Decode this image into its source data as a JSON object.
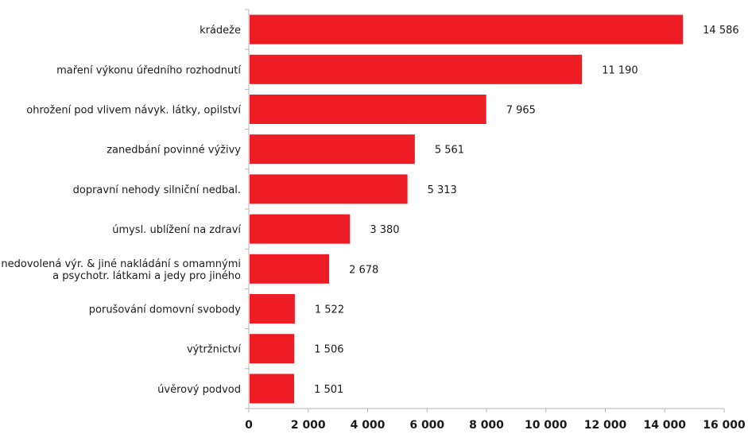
{
  "chart_data": {
    "type": "bar",
    "orientation": "horizontal",
    "title": "",
    "xlabel": "",
    "ylabel": "",
    "xlim": [
      0,
      16000
    ],
    "grid": false,
    "legend": "none",
    "bar_color": "#ee1c25",
    "categories": [
      [
        "krádeže"
      ],
      [
        "maření výkonu úředního rozhodnutí"
      ],
      [
        "ohrožení pod vlivem návyk. látky, opilství"
      ],
      [
        "zanedbání povinné výživy"
      ],
      [
        "dopravní nehody silniční nedbal."
      ],
      [
        "úmysl. ublížení na zdraví"
      ],
      [
        "nedovolená výr. & jiné nakládání s omamnými",
        "a psychotr. látkami a jedy pro jiného"
      ],
      [
        "porušování domovní svobody"
      ],
      [
        "výtržnictví"
      ],
      [
        "úvěrový podvod"
      ]
    ],
    "values": [
      14586,
      11190,
      7965,
      5561,
      5313,
      3380,
      2678,
      1522,
      1506,
      1501
    ],
    "value_labels": [
      "14 586",
      "11 190",
      "7 965",
      "5 561",
      "5 313",
      "3 380",
      "2 678",
      "1 522",
      "1 506",
      "1 501"
    ],
    "x_ticks": [
      0,
      2000,
      4000,
      6000,
      8000,
      10000,
      12000,
      14000,
      16000
    ],
    "x_tick_labels": [
      "0",
      "2 000",
      "4 000",
      "6 000",
      "8 000",
      "10 000",
      "12 000",
      "14 000",
      "16 000"
    ]
  }
}
